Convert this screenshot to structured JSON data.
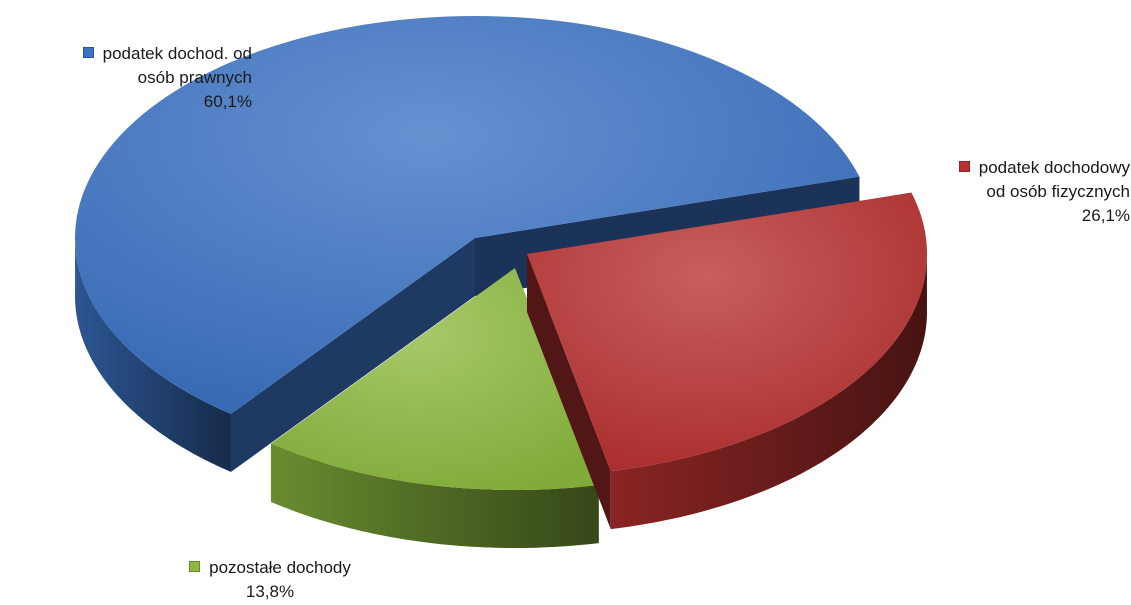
{
  "chart_data": {
    "type": "pie",
    "title": "",
    "slices": [
      {
        "label_lines": [
          "podatek dochod. od",
          "osób prawnych"
        ],
        "value": 60.1,
        "value_label": "60,1%",
        "color": "#3b72c4"
      },
      {
        "label_lines": [
          "podatek dochodowy",
          "od osób fizycznych"
        ],
        "value": 26.1,
        "value_label": "26,1%",
        "color": "#b83130"
      },
      {
        "label_lines": [
          "pozostałe dochody"
        ],
        "value": 13.8,
        "value_label": "13,8%",
        "color": "#8cba3f"
      }
    ]
  }
}
